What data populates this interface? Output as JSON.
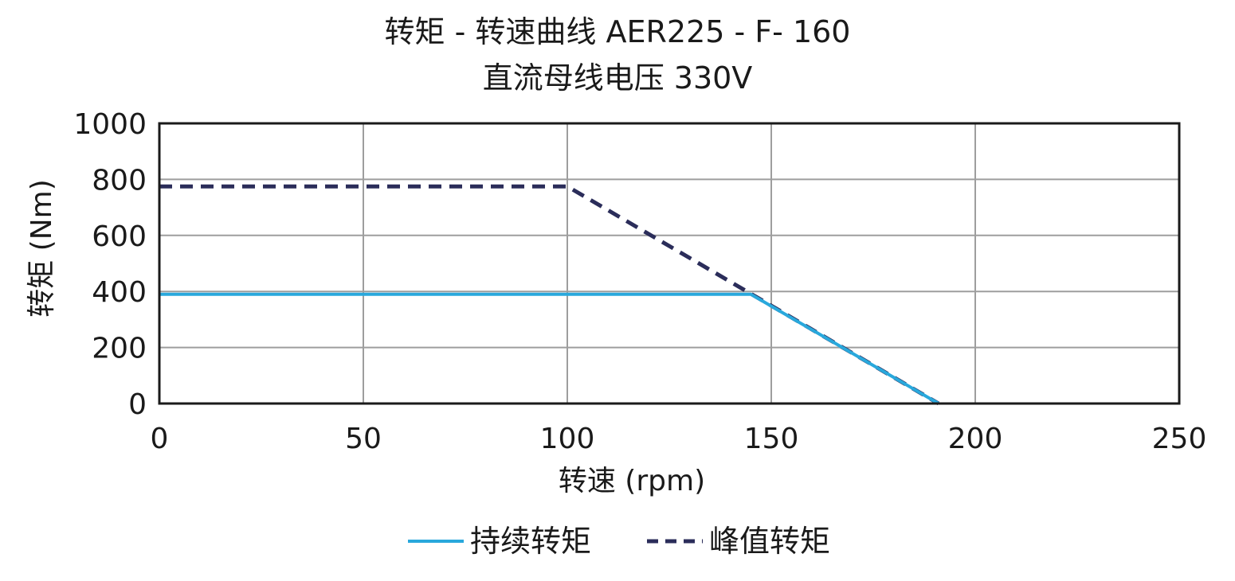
{
  "chart_data": {
    "type": "line",
    "title": "转矩 - 转速曲线  AER225 - F- 160",
    "subtitle": "直流母线电压  330V",
    "xlabel": "转速 (rpm)",
    "ylabel": "转矩 (Nm)",
    "xlim": [
      0,
      250
    ],
    "ylim": [
      0,
      1000
    ],
    "xticks": [
      0,
      50,
      100,
      150,
      200,
      250
    ],
    "yticks": [
      0,
      200,
      400,
      600,
      800,
      1000
    ],
    "grid": true,
    "legend_position": "bottom",
    "series": [
      {
        "name": "持续转矩",
        "style": "solid",
        "color": "#29a8dc",
        "x": [
          0,
          145,
          191
        ],
        "y": [
          390,
          390,
          0
        ]
      },
      {
        "name": "峰值转矩",
        "style": "dashed",
        "color": "#2b2d5a",
        "x": [
          0,
          100,
          191
        ],
        "y": [
          775,
          775,
          0
        ]
      }
    ]
  }
}
